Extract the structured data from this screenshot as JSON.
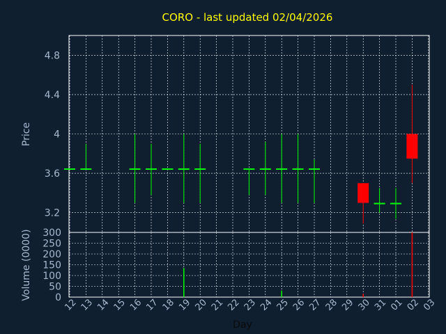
{
  "colors": {
    "background": "#0f1f30",
    "plot_border": "#ffffff",
    "grid": "#ffffff",
    "title": "#ffff00",
    "tick_text": "#a8b8d0",
    "xlabel_text": "#0a0a0a",
    "up": "#00ff00",
    "down": "#ff0000"
  },
  "chart_data": [
    {
      "type": "candlestick",
      "title": "CORO - last updated 02/04/2026",
      "ylabel": "Price",
      "ylim": [
        3.0,
        5.0
      ],
      "yticks": [
        3.2,
        3.6,
        4,
        4.4,
        4.8
      ],
      "ytick_labels": [
        "3.2",
        "3.6",
        "4",
        "4.4",
        "4.8"
      ],
      "grid": true,
      "x_labels": [
        "12",
        "13",
        "14",
        "15",
        "16",
        "17",
        "18",
        "19",
        "20",
        "21",
        "22",
        "23",
        "24",
        "25",
        "26",
        "27",
        "28",
        "29",
        "30",
        "31",
        "01",
        "02",
        "03"
      ],
      "candles": [
        {
          "day": "12",
          "open": 3.65,
          "high": 3.65,
          "low": 3.65,
          "close": 3.65
        },
        {
          "day": "13",
          "open": 3.65,
          "high": 3.9,
          "low": 3.65,
          "close": 3.65
        },
        {
          "day": "16",
          "open": 3.65,
          "high": 4.0,
          "low": 3.3,
          "close": 3.65
        },
        {
          "day": "17",
          "open": 3.65,
          "high": 3.9,
          "low": 3.38,
          "close": 3.65
        },
        {
          "day": "18",
          "open": 3.65,
          "high": 3.65,
          "low": 3.65,
          "close": 3.65
        },
        {
          "day": "19",
          "open": 3.65,
          "high": 4.0,
          "low": 3.3,
          "close": 3.65
        },
        {
          "day": "20",
          "open": 3.65,
          "high": 3.9,
          "low": 3.3,
          "close": 3.65
        },
        {
          "day": "23",
          "open": 3.65,
          "high": 3.65,
          "low": 3.38,
          "close": 3.65
        },
        {
          "day": "24",
          "open": 3.65,
          "high": 3.92,
          "low": 3.38,
          "close": 3.65
        },
        {
          "day": "25",
          "open": 3.65,
          "high": 4.0,
          "low": 3.3,
          "close": 3.65
        },
        {
          "day": "26",
          "open": 3.65,
          "high": 4.0,
          "low": 3.3,
          "close": 3.65
        },
        {
          "day": "27",
          "open": 3.65,
          "high": 3.74,
          "low": 3.3,
          "close": 3.65
        },
        {
          "day": "30",
          "open": 3.5,
          "high": 3.5,
          "low": 3.09,
          "close": 3.3
        },
        {
          "day": "31",
          "open": 3.3,
          "high": 3.45,
          "low": 3.2,
          "close": 3.3
        },
        {
          "day": "01",
          "open": 3.3,
          "high": 3.45,
          "low": 3.14,
          "close": 3.3
        },
        {
          "day": "02",
          "open": 4.0,
          "high": 4.5,
          "low": 3.5,
          "close": 3.75
        }
      ]
    },
    {
      "type": "bar",
      "ylabel": "Volume (0000)",
      "ylim": [
        0,
        300
      ],
      "yticks": [
        0,
        50,
        100,
        150,
        200,
        250,
        300
      ],
      "ytick_labels": [
        "0",
        "50",
        "100",
        "150",
        "200",
        "250",
        "300"
      ],
      "xlabel": "Day",
      "bars": [
        {
          "day": "19",
          "value": 135,
          "direction": "up"
        },
        {
          "day": "25",
          "value": 30,
          "direction": "up"
        },
        {
          "day": "30",
          "value": 15,
          "direction": "down"
        },
        {
          "day": "02",
          "value": 300,
          "direction": "down"
        }
      ]
    }
  ]
}
